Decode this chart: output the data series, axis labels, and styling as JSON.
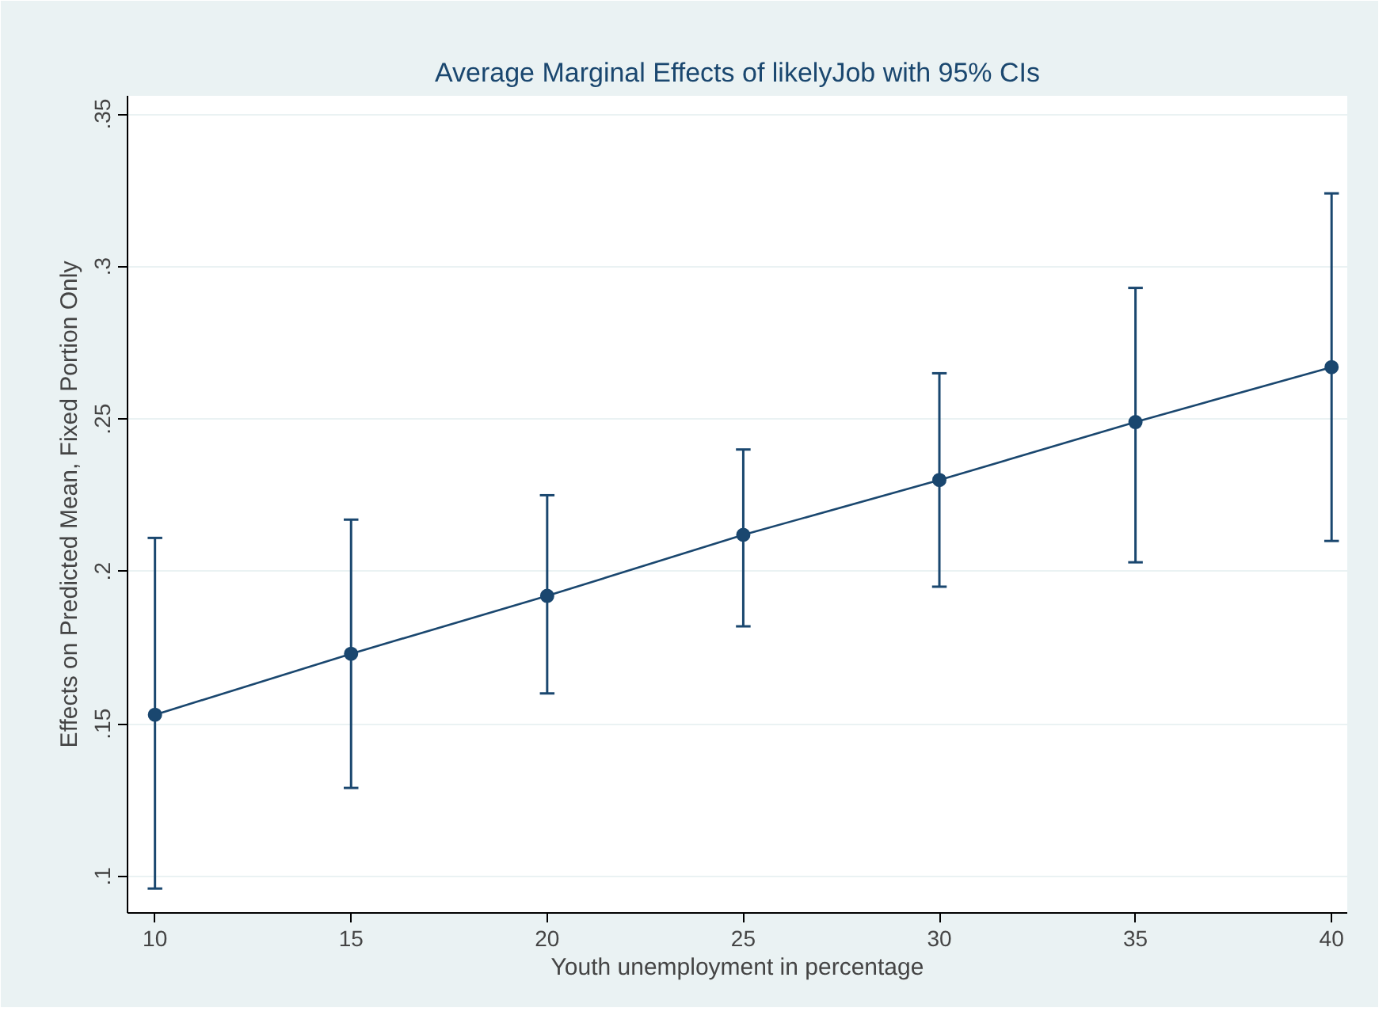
{
  "chart_data": {
    "type": "line",
    "title": "Average Marginal Effects of likelyJob with 95% CIs",
    "xlabel": "Youth unemployment in percentage",
    "ylabel": "Effects on Predicted Mean, Fixed Portion Only",
    "x": [
      10,
      15,
      20,
      25,
      30,
      35,
      40
    ],
    "series": [
      {
        "color": "#1a476f",
        "values": [
          0.153,
          0.173,
          0.192,
          0.212,
          0.23,
          0.249,
          0.267
        ],
        "errors": [
          [
            0.096,
            0.211
          ],
          [
            0.129,
            0.217
          ],
          [
            0.16,
            0.225
          ],
          [
            0.182,
            0.24
          ],
          [
            0.195,
            0.265
          ],
          [
            0.203,
            0.293
          ],
          [
            0.21,
            0.324
          ]
        ]
      }
    ],
    "marker": "circle",
    "line_style": "solid",
    "grid": "y",
    "xlim": [
      9.3,
      40.4
    ],
    "xticks": [
      10,
      15,
      20,
      25,
      30,
      35,
      40
    ],
    "ylim": [
      0.088,
      0.356
    ],
    "yticks": [
      {
        "value": 0.1,
        "label": ".1"
      },
      {
        "value": 0.15,
        "label": ".15"
      },
      {
        "value": 0.2,
        "label": ".2"
      },
      {
        "value": 0.25,
        "label": ".25"
      },
      {
        "value": 0.3,
        "label": ".3"
      },
      {
        "value": 0.35,
        "label": ".35"
      }
    ]
  }
}
